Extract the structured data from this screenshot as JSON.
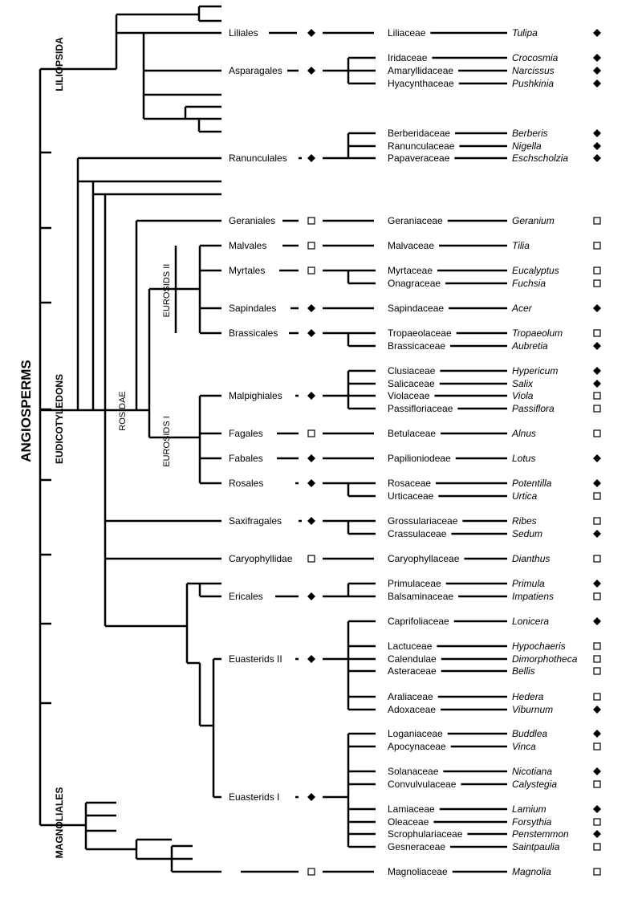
{
  "clades": {
    "angiosperms": "ANGIOSPERMS",
    "liliopsida": "LILIOPSIDA",
    "eudicotyledons": "EUDICOTYLEDONS",
    "magnoliales": "MAGNOLIALES",
    "rosidae": "ROSIDAE",
    "eurosids_ii": "EUROSIDS II",
    "eurosids_i": "EUROSIDS I"
  },
  "legend": {
    "filled_diamond": "diamond-icon",
    "open_square": "square-icon"
  },
  "orders": [
    {
      "name": "Liliales",
      "marker": "diamond"
    },
    {
      "name": "Asparagales",
      "marker": "diamond"
    },
    {
      "name": "Ranunculales",
      "marker": "diamond"
    },
    {
      "name": "Geraniales",
      "marker": "square"
    },
    {
      "name": "Malvales",
      "marker": "square"
    },
    {
      "name": "Myrtales",
      "marker": "square"
    },
    {
      "name": "Sapindales",
      "marker": "diamond"
    },
    {
      "name": "Brassicales",
      "marker": "diamond"
    },
    {
      "name": "Malpighiales",
      "marker": "diamond"
    },
    {
      "name": "Fagales",
      "marker": "square"
    },
    {
      "name": "Fabales",
      "marker": "diamond"
    },
    {
      "name": "Rosales",
      "marker": "diamond"
    },
    {
      "name": "Saxifragales",
      "marker": "diamond"
    },
    {
      "name": "Caryophyllidae",
      "marker": "square"
    },
    {
      "name": "Ericales",
      "marker": "diamond"
    },
    {
      "name": "Euasterids II",
      "marker": "diamond"
    },
    {
      "name": "Euasterids I",
      "marker": "diamond"
    },
    {
      "name": "",
      "marker": "square"
    }
  ],
  "taxa": [
    {
      "family": "Liliaceae",
      "genus": "Tulipa",
      "marker": "diamond"
    },
    {
      "family": "Iridaceae",
      "genus": "Crocosmia",
      "marker": "diamond"
    },
    {
      "family": "Amaryllidaceae",
      "genus": "Narcissus",
      "marker": "diamond"
    },
    {
      "family": "Hyacynthaceae",
      "genus": "Pushkinia",
      "marker": "diamond"
    },
    {
      "family": "Berberidaceae",
      "genus": "Berberis",
      "marker": "diamond"
    },
    {
      "family": "Ranunculaceae",
      "genus": "Nigella",
      "marker": "diamond"
    },
    {
      "family": "Papaveraceae",
      "genus": "Eschscholzia",
      "marker": "diamond"
    },
    {
      "family": "Geraniaceae",
      "genus": "Geranium",
      "marker": "square"
    },
    {
      "family": "Malvaceae",
      "genus": "Tilia",
      "marker": "square"
    },
    {
      "family": "Myrtaceae",
      "genus": "Eucalyptus",
      "marker": "square"
    },
    {
      "family": "Onagraceae",
      "genus": "Fuchsia",
      "marker": "square"
    },
    {
      "family": "Sapindaceae",
      "genus": "Acer",
      "marker": "diamond"
    },
    {
      "family": "Tropaeolaceae",
      "genus": "Tropaeolum",
      "marker": "square"
    },
    {
      "family": "Brassicaceae",
      "genus": "Aubretia",
      "marker": "diamond"
    },
    {
      "family": "Clusiaceae",
      "genus": "Hypericum",
      "marker": "diamond"
    },
    {
      "family": "Salicaceae",
      "genus": "Salix",
      "marker": "diamond"
    },
    {
      "family": "Violaceae",
      "genus": "Viola",
      "marker": "square"
    },
    {
      "family": "Passifloriaceae",
      "genus": "Passiflora",
      "marker": "square"
    },
    {
      "family": "Betulaceae",
      "genus": "Alnus",
      "marker": "square"
    },
    {
      "family": "Papilioniodeae",
      "genus": "Lotus",
      "marker": "diamond"
    },
    {
      "family": "Rosaceae",
      "genus": "Potentilla",
      "marker": "diamond"
    },
    {
      "family": "Urticaceae",
      "genus": "Urtica",
      "marker": "square"
    },
    {
      "family": "Grossulariaceae",
      "genus": "Ribes",
      "marker": "square"
    },
    {
      "family": "Crassulaceae",
      "genus": "Sedum",
      "marker": "diamond"
    },
    {
      "family": "Caryophyllaceae",
      "genus": "Dianthus",
      "marker": "square"
    },
    {
      "family": "Primulaceae",
      "genus": "Primula",
      "marker": "diamond"
    },
    {
      "family": "Balsaminaceae",
      "genus": "Impatiens",
      "marker": "square"
    },
    {
      "family": "Caprifoliaceae",
      "genus": "Lonicera",
      "marker": "diamond"
    },
    {
      "family": "Lactuceae",
      "genus": "Hypochaeris",
      "marker": "square"
    },
    {
      "family": "Calendulae",
      "genus": "Dimorphotheca",
      "marker": "square"
    },
    {
      "family": "Asteraceae",
      "genus": "Bellis",
      "marker": "square"
    },
    {
      "family": "Araliaceae",
      "genus": "Hedera",
      "marker": "square"
    },
    {
      "family": "Adoxaceae",
      "genus": "Viburnum",
      "marker": "diamond"
    },
    {
      "family": "Loganiaceae",
      "genus": "Buddlea",
      "marker": "diamond"
    },
    {
      "family": "Apocynaceae",
      "genus": "Vinca",
      "marker": "square"
    },
    {
      "family": "Solanaceae",
      "genus": "Nicotiana",
      "marker": "diamond"
    },
    {
      "family": "Convulvulaceae",
      "genus": "Calystegia",
      "marker": "square"
    },
    {
      "family": "Lamiaceae",
      "genus": "Lamium",
      "marker": "diamond"
    },
    {
      "family": "Oleaceae",
      "genus": "Forsythia",
      "marker": "square"
    },
    {
      "family": "Scrophulariaceae",
      "genus": "Penstemmon",
      "marker": "diamond"
    },
    {
      "family": "Gesneraceae",
      "genus": "Saintpaulia",
      "marker": "square"
    },
    {
      "family": "Magnoliaceae",
      "genus": "Magnolia",
      "marker": "square"
    }
  ]
}
